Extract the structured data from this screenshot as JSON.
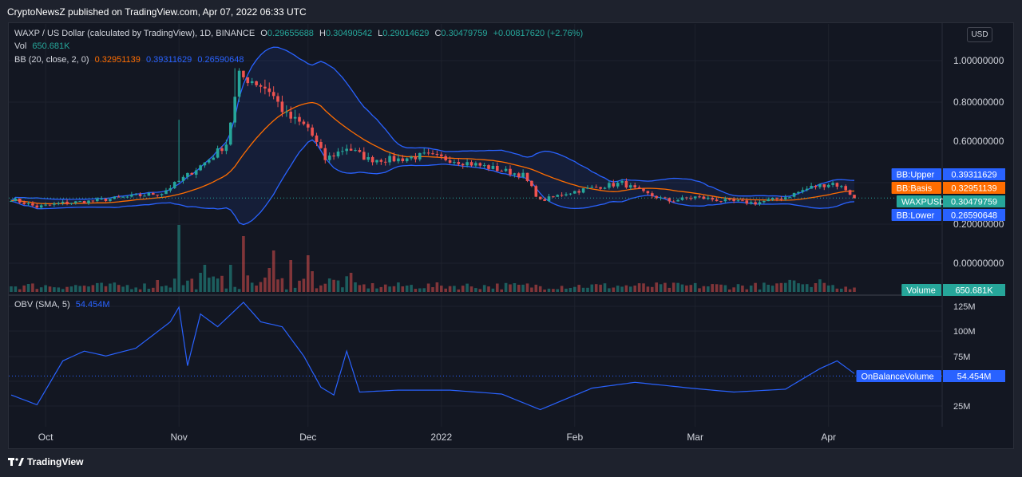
{
  "header": {
    "publisher": "CryptoNewsZ published on TradingView.com, Apr 07, 2022 06:33 UTC"
  },
  "legend": {
    "symbol": "WAXP / US Dollar (calculated by TradingView), 1D, BINANCE",
    "o_label": "O",
    "o": "0.29655688",
    "h_label": "H",
    "h": "0.30490542",
    "l_label": "L",
    "l": "0.29014629",
    "c_label": "C",
    "c": "0.30479759",
    "change": "+0.00817620 (+2.76%)",
    "vol_label": "Vol",
    "vol": "650.681K",
    "bb_label": "BB (20, close, 2, 0)",
    "bb_basis": "0.32951139",
    "bb_upper": "0.39311629",
    "bb_lower": "0.26590648",
    "obv_label": "OBV (SMA, 5)",
    "obv": "54.454M"
  },
  "currency_button": "USD",
  "price_axis": [
    "1.00000000",
    "0.80000000",
    "0.60000000",
    "0.20000000",
    "0.00000000"
  ],
  "obv_axis": [
    "125M",
    "100M",
    "75M",
    "25M"
  ],
  "time_axis": [
    "Oct",
    "Nov",
    "Dec",
    "2022",
    "Feb",
    "Mar",
    "Apr"
  ],
  "badges": {
    "bb_upper_label": "BB:Upper",
    "bb_upper_value": "0.39311629",
    "bb_basis_label": "BB:Basis",
    "bb_basis_value": "0.32951139",
    "symbol_label": "WAXPUSD",
    "symbol_value": "0.30479759",
    "bb_lower_label": "BB:Lower",
    "bb_lower_value": "0.26590648",
    "volume_label": "Volume",
    "volume_value": "650.681K",
    "obv_label": "OnBalanceVolume",
    "obv_value": "54.454M"
  },
  "footer": {
    "brand": "TradingView"
  },
  "colors": {
    "up": "#26a69a",
    "down": "#ef5350",
    "bb_band": "#2962ff",
    "bb_basis": "#ff6d00",
    "obv": "#2962ff"
  },
  "chart_data": {
    "type": "candlestick",
    "price_ylim": [
      0.0,
      1.08
    ],
    "obv_ylim": [
      0,
      130
    ],
    "dates": "2021-09-23 to 2022-04-07 (daily)",
    "close_anchors": [
      [
        "2021-09-23",
        0.3
      ],
      [
        "2021-09-29",
        0.26
      ],
      [
        "2021-10-05",
        0.28
      ],
      [
        "2021-10-12",
        0.29
      ],
      [
        "2021-10-20",
        0.31
      ],
      [
        "2021-10-28",
        0.33
      ],
      [
        "2021-11-03",
        0.42
      ],
      [
        "2021-11-08",
        0.5
      ],
      [
        "2021-11-12",
        0.58
      ],
      [
        "2021-11-15",
        0.92
      ],
      [
        "2021-11-18",
        0.9
      ],
      [
        "2021-11-22",
        0.85
      ],
      [
        "2021-11-26",
        0.72
      ],
      [
        "2021-12-01",
        0.66
      ],
      [
        "2021-12-05",
        0.5
      ],
      [
        "2021-12-10",
        0.56
      ],
      [
        "2021-12-15",
        0.5
      ],
      [
        "2021-12-22",
        0.5
      ],
      [
        "2021-12-28",
        0.52
      ],
      [
        "2022-01-03",
        0.5
      ],
      [
        "2022-01-12",
        0.46
      ],
      [
        "2022-01-20",
        0.42
      ],
      [
        "2022-01-24",
        0.29
      ],
      [
        "2022-01-30",
        0.33
      ],
      [
        "2022-02-06",
        0.36
      ],
      [
        "2022-02-12",
        0.38
      ],
      [
        "2022-02-17",
        0.33
      ],
      [
        "2022-02-23",
        0.29
      ],
      [
        "2022-03-01",
        0.31
      ],
      [
        "2022-03-08",
        0.29
      ],
      [
        "2022-03-15",
        0.28
      ],
      [
        "2022-03-22",
        0.31
      ],
      [
        "2022-03-28",
        0.36
      ],
      [
        "2022-04-02",
        0.38
      ],
      [
        "2022-04-05",
        0.35
      ],
      [
        "2022-04-07",
        0.305
      ]
    ],
    "obv_anchors": [
      [
        "2021-09-23",
        35
      ],
      [
        "2021-09-29",
        25
      ],
      [
        "2021-10-05",
        70
      ],
      [
        "2021-10-10",
        80
      ],
      [
        "2021-10-15",
        75
      ],
      [
        "2021-10-22",
        83
      ],
      [
        "2021-10-30",
        110
      ],
      [
        "2021-11-01",
        125
      ],
      [
        "2021-11-03",
        65
      ],
      [
        "2021-11-06",
        118
      ],
      [
        "2021-11-10",
        105
      ],
      [
        "2021-11-16",
        130
      ],
      [
        "2021-11-20",
        110
      ],
      [
        "2021-11-25",
        105
      ],
      [
        "2021-11-30",
        75
      ],
      [
        "2021-12-04",
        43
      ],
      [
        "2021-12-07",
        35
      ],
      [
        "2021-12-10",
        80
      ],
      [
        "2021-12-13",
        38
      ],
      [
        "2021-12-22",
        40
      ],
      [
        "2022-01-03",
        40
      ],
      [
        "2022-01-15",
        36
      ],
      [
        "2022-01-24",
        20
      ],
      [
        "2022-02-05",
        42
      ],
      [
        "2022-02-15",
        48
      ],
      [
        "2022-02-28",
        42
      ],
      [
        "2022-03-10",
        38
      ],
      [
        "2022-03-22",
        41
      ],
      [
        "2022-03-30",
        62
      ],
      [
        "2022-04-03",
        70
      ],
      [
        "2022-04-07",
        57
      ]
    ],
    "volume_note": "daily volume bars, scaled; spikes on 2021-11-01, 2021-11-16, 2021-12-07"
  }
}
